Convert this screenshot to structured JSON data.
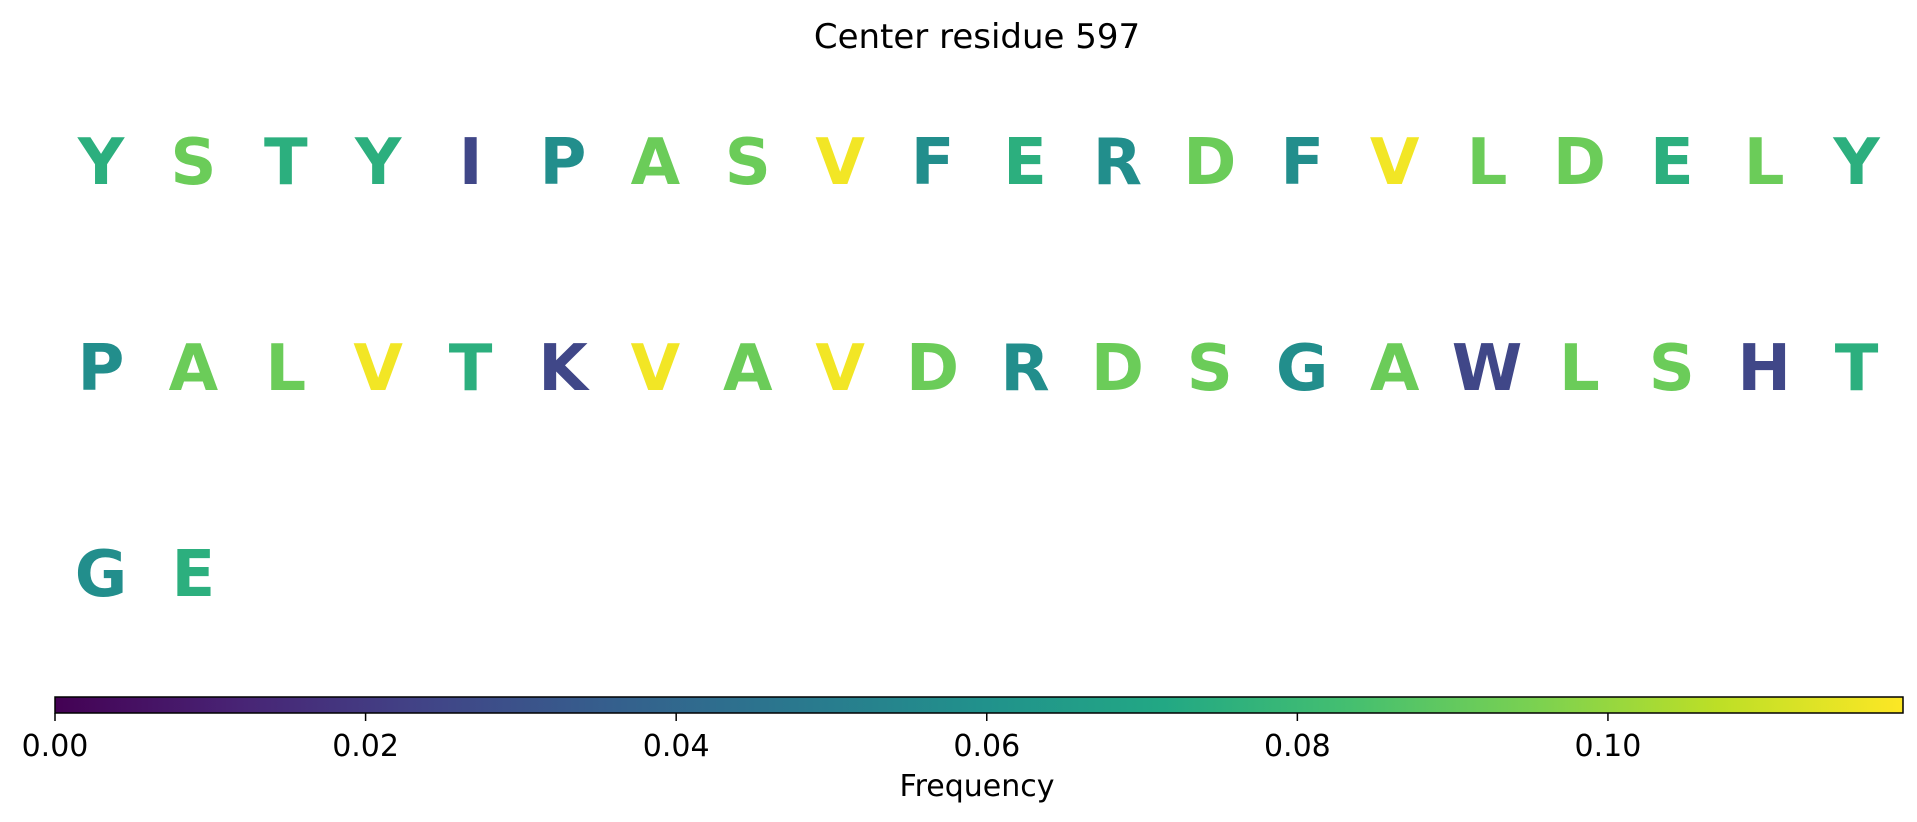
{
  "chart_data": {
    "type": "heatmap",
    "title": "Center residue 597",
    "residues": [
      {
        "letter": "Y",
        "frequency": 0.075
      },
      {
        "letter": "S",
        "frequency": 0.092
      },
      {
        "letter": "T",
        "frequency": 0.075
      },
      {
        "letter": "Y",
        "frequency": 0.075
      },
      {
        "letter": "I",
        "frequency": 0.025
      },
      {
        "letter": "P",
        "frequency": 0.058
      },
      {
        "letter": "A",
        "frequency": 0.092
      },
      {
        "letter": "S",
        "frequency": 0.092
      },
      {
        "letter": "V",
        "frequency": 0.117
      },
      {
        "letter": "F",
        "frequency": 0.058
      },
      {
        "letter": "E",
        "frequency": 0.075
      },
      {
        "letter": "R",
        "frequency": 0.058
      },
      {
        "letter": "D",
        "frequency": 0.092
      },
      {
        "letter": "F",
        "frequency": 0.058
      },
      {
        "letter": "V",
        "frequency": 0.117
      },
      {
        "letter": "L",
        "frequency": 0.092
      },
      {
        "letter": "D",
        "frequency": 0.092
      },
      {
        "letter": "E",
        "frequency": 0.075
      },
      {
        "letter": "L",
        "frequency": 0.092
      },
      {
        "letter": "Y",
        "frequency": 0.075
      },
      {
        "letter": "P",
        "frequency": 0.058
      },
      {
        "letter": "A",
        "frequency": 0.092
      },
      {
        "letter": "L",
        "frequency": 0.092
      },
      {
        "letter": "V",
        "frequency": 0.117
      },
      {
        "letter": "T",
        "frequency": 0.075
      },
      {
        "letter": "K",
        "frequency": 0.025
      },
      {
        "letter": "V",
        "frequency": 0.117
      },
      {
        "letter": "A",
        "frequency": 0.092
      },
      {
        "letter": "V",
        "frequency": 0.117
      },
      {
        "letter": "D",
        "frequency": 0.092
      },
      {
        "letter": "R",
        "frequency": 0.058
      },
      {
        "letter": "D",
        "frequency": 0.092
      },
      {
        "letter": "S",
        "frequency": 0.092
      },
      {
        "letter": "G",
        "frequency": 0.058
      },
      {
        "letter": "A",
        "frequency": 0.092
      },
      {
        "letter": "W",
        "frequency": 0.025
      },
      {
        "letter": "L",
        "frequency": 0.092
      },
      {
        "letter": "S",
        "frequency": 0.092
      },
      {
        "letter": "H",
        "frequency": 0.025
      },
      {
        "letter": "T",
        "frequency": 0.075
      },
      {
        "letter": "G",
        "frequency": 0.058
      },
      {
        "letter": "E",
        "frequency": 0.075
      }
    ],
    "columns_per_row": 20,
    "colorbar": {
      "label": "Frequency",
      "range": [
        0,
        0.119
      ],
      "ticks": [
        0.0,
        0.02,
        0.04,
        0.06,
        0.08,
        0.1
      ],
      "tick_labels": [
        "0.00",
        "0.02",
        "0.04",
        "0.06",
        "0.08",
        "0.10"
      ],
      "colormap": "viridis",
      "orientation": "horizontal",
      "placement": "bottom"
    },
    "grid": false
  }
}
